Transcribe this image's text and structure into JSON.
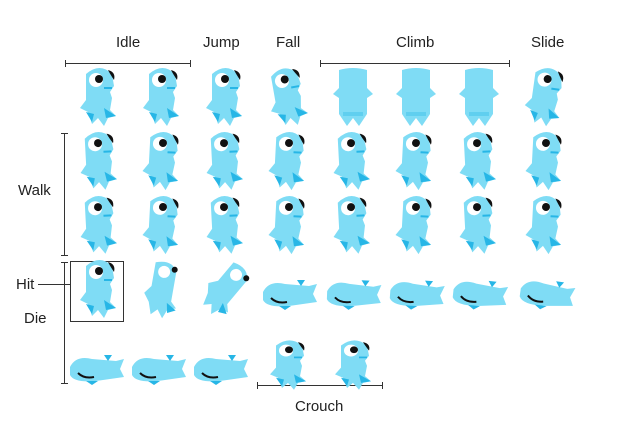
{
  "labels": {
    "idle": "Idle",
    "jump": "Jump",
    "fall": "Fall",
    "climb": "Climb",
    "slide": "Slide",
    "walk": "Walk",
    "hit": "Hit",
    "die": "Die",
    "crouch": "Crouch"
  },
  "colors": {
    "body": "#7fdcf5",
    "shade": "#27b6e6",
    "eye_white": "#ffffff",
    "eye_dark": "#111111",
    "line": "#333333"
  },
  "sprite_rows": [
    [
      "idle",
      "idle",
      "jump",
      "fall",
      "climb",
      "climb",
      "climb",
      "slide"
    ],
    [
      "walk",
      "walk",
      "walk",
      "walk",
      "walk",
      "walk",
      "walk",
      "walk"
    ],
    [
      "walk",
      "walk",
      "walk",
      "walk",
      "walk",
      "walk",
      "walk",
      "walk"
    ],
    [
      "hit",
      "die",
      "die",
      "die",
      "die",
      "die",
      "die",
      "die"
    ],
    [
      "die",
      "die",
      "die",
      "crouch",
      "crouch"
    ]
  ]
}
